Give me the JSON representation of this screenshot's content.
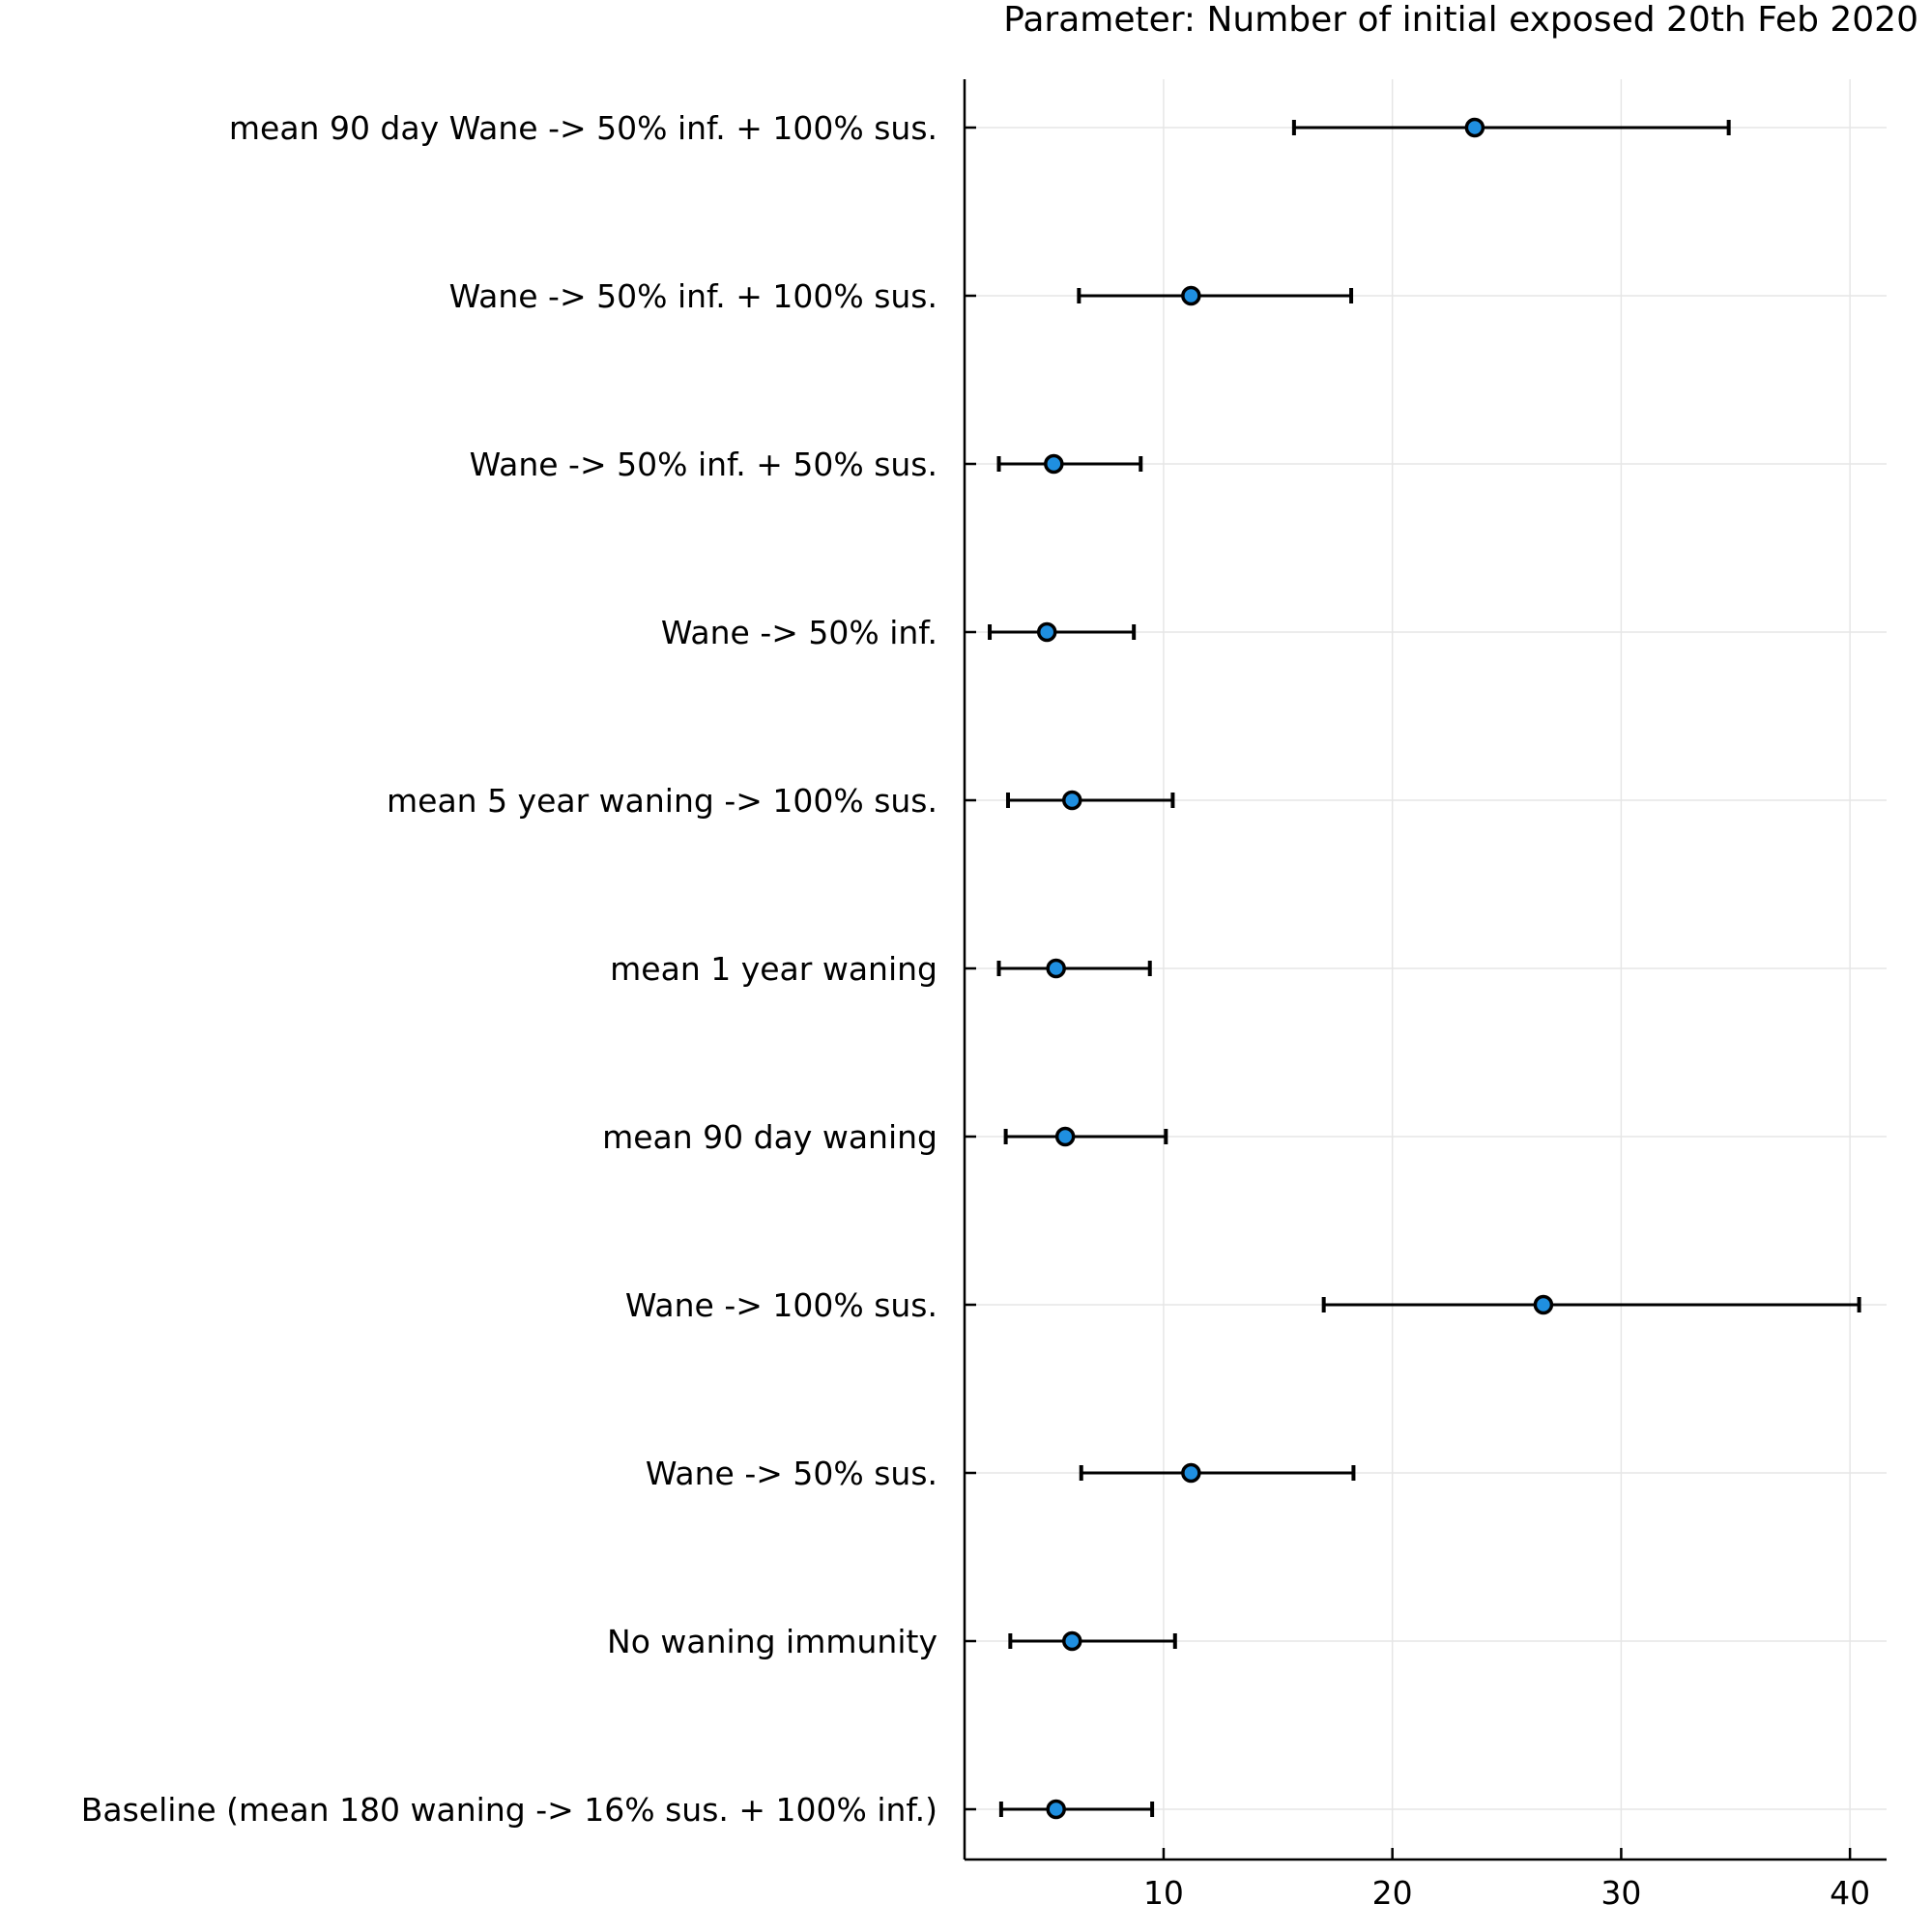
{
  "chart_data": {
    "type": "scatter",
    "title": "Parameter: Number of initial exposed 20th Feb 2020",
    "xlabel": "",
    "ylabel": "",
    "xlim": [
      1.3,
      41.6
    ],
    "xticks": [
      10,
      20,
      30,
      40
    ],
    "grid": true,
    "legend": "none",
    "marker_color": "#1f8fe0",
    "categories": [
      "mean 90 day Wane -> 50% inf. + 100% sus.",
      "Wane -> 50% inf. + 100% sus.",
      "Wane -> 50% inf. + 50% sus.",
      "Wane -> 50% inf.",
      "mean 5 year waning -> 100% sus.",
      "mean 1 year waning",
      "mean 90 day waning",
      "Wane -> 100% sus.",
      "Wane -> 50% sus.",
      "No waning immunity",
      "Baseline (mean 180 waning -> 16% sus. + 100% inf.)"
    ],
    "values": [
      23.6,
      11.2,
      5.2,
      4.9,
      6.0,
      5.3,
      5.7,
      26.6,
      11.2,
      6.0,
      5.3
    ],
    "lower": [
      15.7,
      6.3,
      2.8,
      2.4,
      3.2,
      2.8,
      3.1,
      17.0,
      6.4,
      3.3,
      2.9
    ],
    "upper": [
      34.7,
      18.2,
      9.0,
      8.7,
      10.4,
      9.4,
      10.1,
      40.4,
      18.3,
      10.5,
      9.5
    ]
  }
}
